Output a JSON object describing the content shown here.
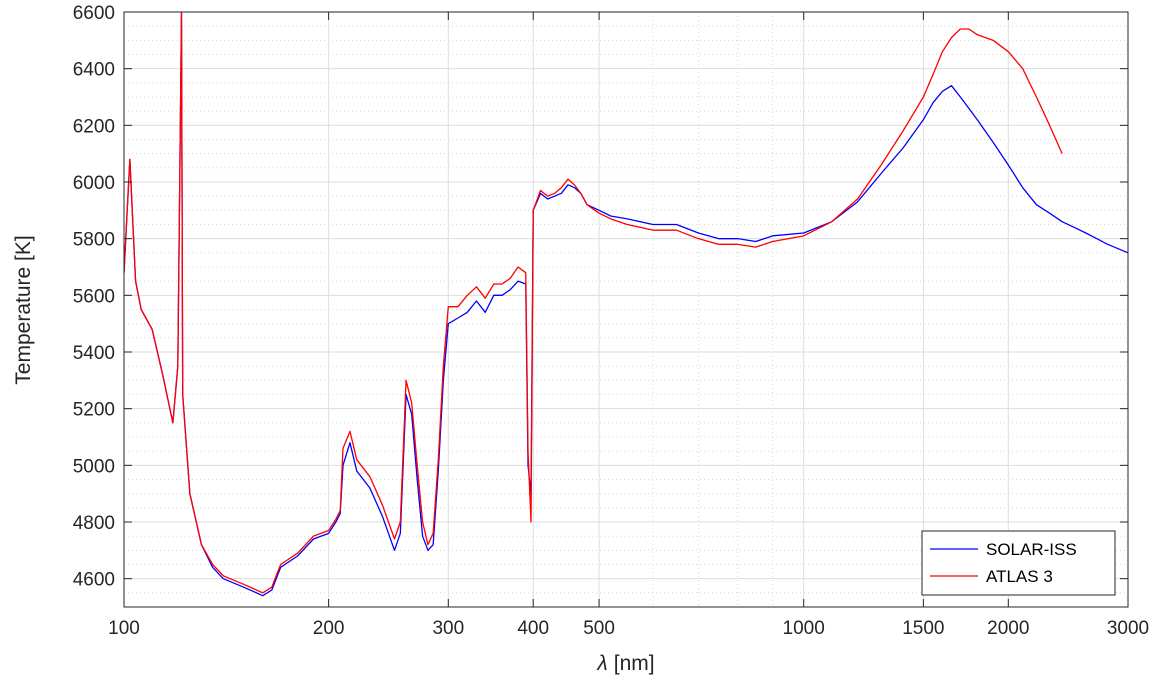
{
  "chart_data": {
    "type": "line",
    "title": "",
    "xlabel_symbol": "λ",
    "xlabel_unit": "[nm]",
    "ylabel": "Temperature [K]",
    "x_scale": "log",
    "xlim": [
      100,
      3000
    ],
    "ylim": [
      4500,
      6600
    ],
    "x_ticks": [
      100,
      200,
      300,
      400,
      500,
      1000,
      1500,
      2000,
      3000
    ],
    "x_tick_labels": [
      "100",
      "200",
      "300",
      "400",
      "500",
      "1000",
      "1500",
      "2000",
      "3000"
    ],
    "y_ticks": [
      4600,
      4800,
      5000,
      5200,
      5400,
      5600,
      5800,
      6000,
      6200,
      6400,
      6600
    ],
    "y_tick_labels": [
      "4600",
      "4800",
      "5000",
      "5200",
      "5400",
      "5600",
      "5800",
      "6000",
      "6200",
      "6400",
      "6600"
    ],
    "grid": true,
    "minor_grid": true,
    "legend_position": "bottom-right",
    "series": [
      {
        "name": "SOLAR-ISS",
        "color": "#0000ff",
        "x": [
          100,
          102,
          104,
          106,
          110,
          114,
          118,
          120,
          121.5,
          122,
          125,
          130,
          135,
          140,
          150,
          160,
          165,
          170,
          180,
          190,
          200,
          205,
          208,
          210,
          215,
          220,
          230,
          240,
          250,
          255,
          260,
          265,
          270,
          275,
          280,
          285,
          290,
          295,
          300,
          310,
          320,
          330,
          340,
          350,
          360,
          370,
          380,
          390,
          393,
          397,
          400,
          410,
          420,
          430,
          440,
          450,
          460,
          470,
          480,
          500,
          520,
          550,
          600,
          650,
          700,
          750,
          800,
          850,
          900,
          1000,
          1100,
          1200,
          1300,
          1400,
          1500,
          1550,
          1600,
          1650,
          1700,
          1750,
          1800,
          1900,
          2000,
          2100,
          2200,
          2300,
          2400,
          2500,
          2600,
          2700,
          2800,
          3000
        ],
        "y": [
          5680,
          6080,
          5650,
          5550,
          5480,
          5320,
          5150,
          5350,
          6600,
          5250,
          4900,
          4720,
          4640,
          4600,
          4570,
          4540,
          4560,
          4640,
          4680,
          4740,
          4760,
          4800,
          4830,
          5000,
          5080,
          4980,
          4920,
          4820,
          4700,
          4760,
          5250,
          5180,
          4950,
          4750,
          4700,
          4720,
          4980,
          5300,
          5500,
          5520,
          5540,
          5580,
          5540,
          5600,
          5600,
          5620,
          5650,
          5640,
          5000,
          4900,
          5900,
          5960,
          5940,
          5950,
          5960,
          5990,
          5980,
          5960,
          5920,
          5900,
          5880,
          5870,
          5850,
          5850,
          5820,
          5800,
          5800,
          5790,
          5810,
          5820,
          5860,
          5930,
          6030,
          6120,
          6220,
          6280,
          6320,
          6340,
          6300,
          6260,
          6220,
          6140,
          6060,
          5980,
          5920,
          5890,
          5860,
          5840,
          5820,
          5800,
          5780,
          5750
        ]
      },
      {
        "name": "ATLAS 3",
        "color": "#ff0000",
        "x": [
          100,
          102,
          104,
          106,
          110,
          114,
          118,
          120,
          121.5,
          122,
          125,
          130,
          135,
          140,
          150,
          160,
          165,
          170,
          180,
          190,
          200,
          205,
          208,
          210,
          215,
          220,
          230,
          240,
          250,
          255,
          260,
          265,
          270,
          275,
          280,
          285,
          290,
          295,
          300,
          310,
          320,
          330,
          340,
          350,
          360,
          370,
          380,
          390,
          393,
          397,
          400,
          410,
          420,
          430,
          440,
          450,
          460,
          470,
          480,
          500,
          520,
          550,
          600,
          650,
          700,
          750,
          800,
          850,
          900,
          1000,
          1100,
          1200,
          1300,
          1400,
          1500,
          1550,
          1600,
          1650,
          1700,
          1750,
          1800,
          1900,
          2000,
          2100,
          2200,
          2300,
          2400
        ],
        "y": [
          5680,
          6080,
          5650,
          5550,
          5480,
          5320,
          5150,
          5350,
          6600,
          5250,
          4900,
          4720,
          4650,
          4610,
          4580,
          4550,
          4570,
          4650,
          4690,
          4750,
          4770,
          4810,
          4840,
          5060,
          5120,
          5020,
          4960,
          4860,
          4740,
          4800,
          5300,
          5220,
          5000,
          4800,
          4720,
          4760,
          5020,
          5350,
          5560,
          5560,
          5600,
          5630,
          5590,
          5640,
          5640,
          5660,
          5700,
          5680,
          5050,
          4800,
          5900,
          5970,
          5950,
          5960,
          5980,
          6010,
          5990,
          5960,
          5920,
          5890,
          5870,
          5850,
          5830,
          5830,
          5800,
          5780,
          5780,
          5770,
          5790,
          5810,
          5860,
          5940,
          6060,
          6180,
          6300,
          6380,
          6460,
          6510,
          6540,
          6540,
          6520,
          6500,
          6460,
          6400,
          6300,
          6200,
          6100
        ]
      }
    ]
  }
}
